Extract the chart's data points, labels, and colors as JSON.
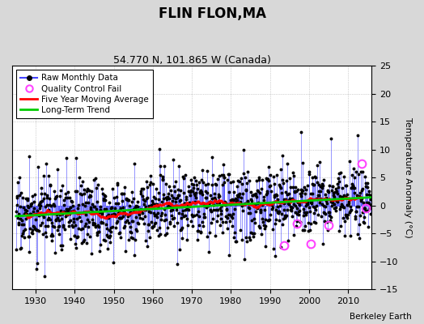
{
  "title": "FLIN FLON,MA",
  "subtitle": "54.770 N, 101.865 W (Canada)",
  "ylabel": "Temperature Anomaly (°C)",
  "credit": "Berkeley Earth",
  "ylim": [
    -15,
    25
  ],
  "yticks": [
    -15,
    -10,
    -5,
    0,
    5,
    10,
    15,
    20,
    25
  ],
  "xlim": [
    1924,
    2016
  ],
  "xticks": [
    1930,
    1940,
    1950,
    1960,
    1970,
    1980,
    1990,
    2000,
    2010
  ],
  "start_year": 1925,
  "end_year": 2015,
  "bg_color": "#d8d8d8",
  "plot_bg_color": "#ffffff",
  "raw_line_color": "#4444ff",
  "raw_marker_color": "#000000",
  "moving_avg_color": "#ff0000",
  "trend_color": "#00cc00",
  "qc_fail_color": "#ff44ff",
  "seed": 17,
  "qc_fail_positions": [
    [
      1993.5,
      -7.2
    ],
    [
      1997.0,
      -3.2
    ],
    [
      2000.5,
      -6.8
    ],
    [
      2005.0,
      -3.5
    ],
    [
      2013.5,
      7.5
    ],
    [
      2014.5,
      -0.5
    ]
  ]
}
